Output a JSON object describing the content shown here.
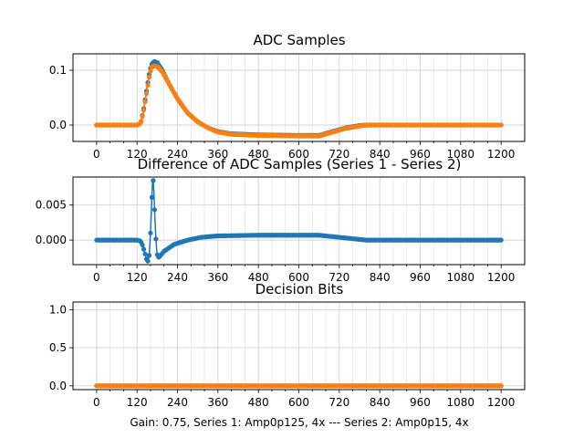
{
  "figure": {
    "xlabel": "Gain: 0.75, Series 1: Amp0p125, 4x --- Series 2: Amp0p15, 4x",
    "colors": {
      "series1": "#1f77b4",
      "series2": "#ff7f0e",
      "grid": "#d3d3d3",
      "axes": "#000000"
    }
  },
  "chart_data": [
    {
      "type": "line",
      "title": "ADC Samples",
      "xlim": [
        -70,
        1270
      ],
      "ylim": [
        -0.03,
        0.13
      ],
      "xticks": [
        0,
        120,
        240,
        360,
        480,
        600,
        720,
        840,
        960,
        1080,
        1200
      ],
      "xtick_labels": [
        "0",
        "120",
        "240",
        "360",
        "480",
        "600",
        "720",
        "840",
        "960",
        "1080",
        "1200"
      ],
      "yticks": [
        0.1,
        0.0
      ],
      "ytick_labels": [
        "0.1",
        "0.0"
      ],
      "grid": true,
      "marker": "dot",
      "x_range": [
        0,
        1200
      ],
      "series": [
        {
          "name": "Series 1",
          "points": [
            [
              0,
              0
            ],
            [
              110,
              0
            ],
            [
              120,
              0
            ],
            [
              128,
              0.002
            ],
            [
              133,
              0.008
            ],
            [
              140,
              0.03
            ],
            [
              150,
              0.07
            ],
            [
              158,
              0.1
            ],
            [
              165,
              0.113
            ],
            [
              172,
              0.116
            ],
            [
              180,
              0.114
            ],
            [
              195,
              0.1
            ],
            [
              215,
              0.075
            ],
            [
              240,
              0.048
            ],
            [
              270,
              0.022
            ],
            [
              300,
              0.006
            ],
            [
              330,
              -0.005
            ],
            [
              360,
              -0.012
            ],
            [
              400,
              -0.016
            ],
            [
              480,
              -0.018
            ],
            [
              600,
              -0.019
            ],
            [
              660,
              -0.019
            ],
            [
              700,
              -0.012
            ],
            [
              740,
              -0.005
            ],
            [
              780,
              -0.001
            ],
            [
              800,
              0
            ],
            [
              1200,
              0
            ]
          ]
        },
        {
          "name": "Series 2",
          "points": [
            [
              0,
              0
            ],
            [
              110,
              0
            ],
            [
              120,
              0
            ],
            [
              128,
              0.002
            ],
            [
              133,
              0.007
            ],
            [
              140,
              0.027
            ],
            [
              150,
              0.065
            ],
            [
              158,
              0.095
            ],
            [
              165,
              0.107
            ],
            [
              172,
              0.108
            ],
            [
              180,
              0.107
            ],
            [
              195,
              0.097
            ],
            [
              215,
              0.075
            ],
            [
              240,
              0.048
            ],
            [
              270,
              0.022
            ],
            [
              300,
              0.006
            ],
            [
              330,
              -0.005
            ],
            [
              360,
              -0.013
            ],
            [
              400,
              -0.017
            ],
            [
              480,
              -0.019
            ],
            [
              600,
              -0.02
            ],
            [
              660,
              -0.02
            ],
            [
              700,
              -0.013
            ],
            [
              740,
              -0.006
            ],
            [
              780,
              -0.002
            ],
            [
              800,
              0
            ],
            [
              1200,
              0
            ]
          ]
        }
      ]
    },
    {
      "type": "line",
      "title": "Difference of ADC Samples (Series 1 - Series 2)",
      "xlim": [
        -70,
        1270
      ],
      "ylim": [
        -0.0035,
        0.009
      ],
      "xticks": [
        0,
        120,
        240,
        360,
        480,
        600,
        720,
        840,
        960,
        1080,
        1200
      ],
      "xtick_labels": [
        "0",
        "120",
        "240",
        "360",
        "480",
        "600",
        "720",
        "840",
        "960",
        "1080",
        "1200"
      ],
      "yticks": [
        0.005,
        0.0
      ],
      "ytick_labels": [
        "0.005",
        "0.000"
      ],
      "grid": true,
      "marker": "dot",
      "x_range": [
        0,
        1200
      ],
      "series": [
        {
          "name": "Series 1 - Series 2",
          "points": [
            [
              0,
              0
            ],
            [
              120,
              0
            ],
            [
              130,
              -0.0001
            ],
            [
              137,
              -0.0008
            ],
            [
              143,
              -0.0018
            ],
            [
              148,
              -0.0027
            ],
            [
              152,
              -0.003
            ],
            [
              156,
              -0.0022
            ],
            [
              160,
              0.001
            ],
            [
              163,
              0.005
            ],
            [
              166,
              0.0083
            ],
            [
              168,
              0.0085
            ],
            [
              170,
              0.007
            ],
            [
              173,
              0.003
            ],
            [
              177,
              -0.0008
            ],
            [
              181,
              -0.0025
            ],
            [
              186,
              -0.0024
            ],
            [
              200,
              -0.0016
            ],
            [
              230,
              -0.0006
            ],
            [
              270,
              0
            ],
            [
              310,
              0.0004
            ],
            [
              360,
              0.0006
            ],
            [
              480,
              0.0007
            ],
            [
              600,
              0.0007
            ],
            [
              660,
              0.0007
            ],
            [
              700,
              0.0005
            ],
            [
              740,
              0.0003
            ],
            [
              780,
              0.0001
            ],
            [
              800,
              0
            ],
            [
              1200,
              0
            ]
          ]
        }
      ]
    },
    {
      "type": "line",
      "title": "Decision Bits",
      "xlim": [
        -70,
        1270
      ],
      "ylim": [
        -0.05,
        1.1
      ],
      "xticks": [
        0,
        120,
        240,
        360,
        480,
        600,
        720,
        840,
        960,
        1080,
        1200
      ],
      "xtick_labels": [
        "0",
        "120",
        "240",
        "360",
        "480",
        "600",
        "720",
        "840",
        "960",
        "1080",
        "1200"
      ],
      "yticks": [
        1.0,
        0.5,
        0.0
      ],
      "ytick_labels": [
        "1.0",
        "0.5",
        "0.0"
      ],
      "grid": true,
      "marker": "dot",
      "x_range": [
        0,
        1200
      ],
      "series": [
        {
          "name": "Series 1",
          "points": [
            [
              0,
              0
            ],
            [
              1200,
              0
            ]
          ]
        },
        {
          "name": "Series 2",
          "points": [
            [
              0,
              0
            ],
            [
              1200,
              0
            ]
          ]
        }
      ]
    }
  ]
}
